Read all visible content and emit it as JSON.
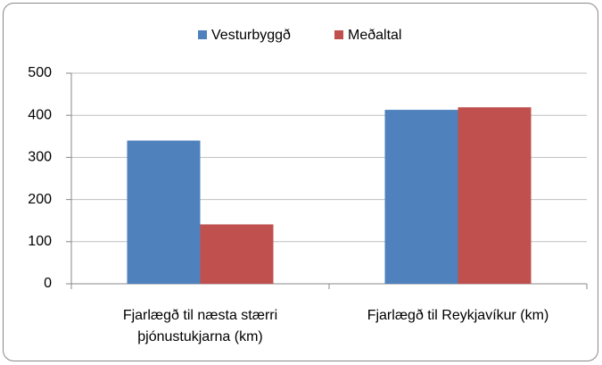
{
  "chart_data": {
    "type": "bar",
    "categories": [
      "Fjarlægð til næsta stærri þjónustukjarna (km)",
      "Fjarlægð til Reykjavíkur (km)"
    ],
    "series": [
      {
        "name": "Vesturbyggð",
        "color": "#4f81bd",
        "values": [
          340,
          413
        ]
      },
      {
        "name": "Meðaltal",
        "color": "#c0504d",
        "values": [
          141,
          419
        ]
      }
    ],
    "ylim": [
      0,
      500
    ],
    "yticks": [
      0,
      100,
      200,
      300,
      400,
      500
    ],
    "grid": true,
    "legend": "top"
  }
}
